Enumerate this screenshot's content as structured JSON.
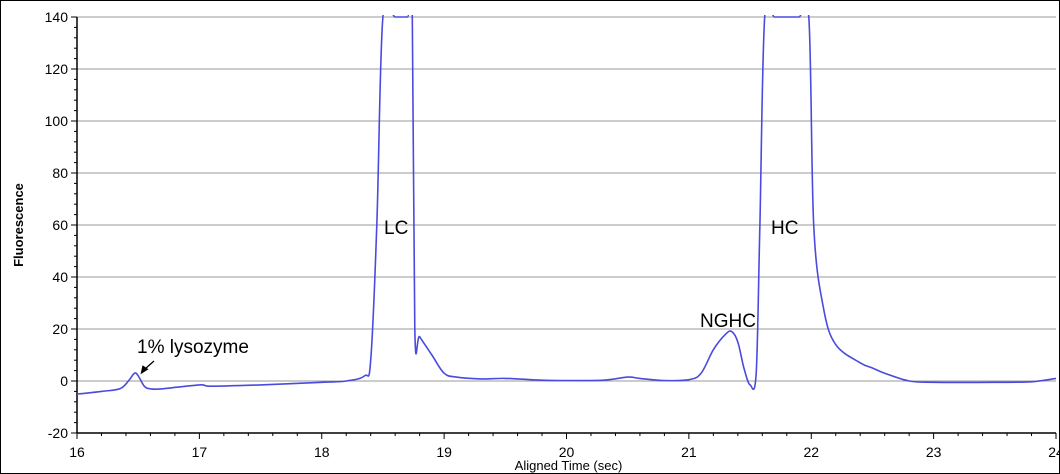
{
  "chart_data": {
    "type": "line",
    "title": "",
    "xlabel": "Aligned Time (sec)",
    "ylabel": "Fluorescence",
    "xlim": [
      16,
      24
    ],
    "ylim": [
      -20,
      140
    ],
    "x_ticks": [
      "16",
      "17",
      "18",
      "19",
      "20",
      "21",
      "22",
      "23",
      "24"
    ],
    "y_ticks": [
      "-20",
      "0",
      "20",
      "40",
      "60",
      "80",
      "100",
      "120",
      "140"
    ],
    "grid": true,
    "line_color": "#4a4adf",
    "series": [
      {
        "x": [
          16.0,
          16.2,
          16.35,
          16.42,
          16.47,
          16.5,
          16.55,
          16.6,
          16.7,
          17.0,
          17.1,
          17.5,
          18.0,
          18.2,
          18.35,
          18.4,
          18.45,
          18.5,
          18.6,
          18.7,
          18.74,
          18.76,
          18.8,
          18.9,
          19.0,
          19.1,
          19.3,
          19.5,
          19.8,
          20.0,
          20.3,
          20.5,
          20.6,
          20.8,
          21.0,
          21.1,
          21.2,
          21.3,
          21.35,
          21.4,
          21.45,
          21.5,
          21.55,
          21.58,
          21.62,
          21.7,
          21.8,
          21.9,
          21.98,
          22.02,
          22.1,
          22.2,
          22.4,
          22.5,
          22.6,
          22.8,
          23.0,
          23.5,
          23.8,
          24.0
        ],
        "y": [
          -5,
          -4,
          -3,
          0,
          3,
          2,
          -2,
          -3,
          -3,
          -1.5,
          -2,
          -1.5,
          -0.5,
          0,
          2,
          8,
          60,
          140,
          140,
          140,
          140,
          20,
          17,
          10,
          3,
          1.5,
          0.8,
          1,
          0.3,
          0.2,
          0.3,
          1.5,
          1,
          0.2,
          0.5,
          3,
          12,
          18,
          19,
          15,
          5,
          -1.5,
          3,
          60,
          140,
          140,
          140,
          140,
          140,
          60,
          28,
          14,
          7,
          5,
          3,
          0,
          -0.5,
          -0.5,
          -0.3,
          1
        ]
      }
    ],
    "annotations": [
      {
        "text": "1% lysozyme",
        "x": 16.47,
        "y": 3
      },
      {
        "text": "LC",
        "x": 18.62,
        "y": 62
      },
      {
        "text": "NGHC",
        "x": 21.3,
        "y": 23
      },
      {
        "text": "HC",
        "x": 21.8,
        "y": 62
      }
    ]
  }
}
